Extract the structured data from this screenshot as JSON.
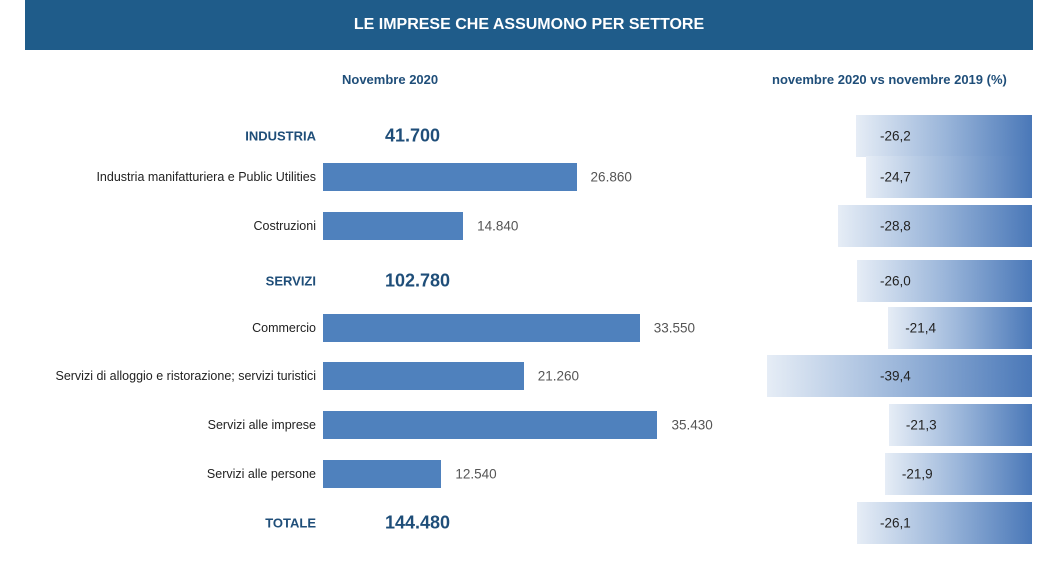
{
  "chart_data": {
    "type": "bar",
    "title": "LE IMPRESE CHE ASSUMONO PER SETTORE",
    "left_header": "Novembre 2020",
    "right_header": "novembre 2020 vs novembre 2019 (%)",
    "rows": [
      {
        "label": "INDUSTRIA",
        "kind": "category",
        "value": 41700,
        "value_label": "41.700",
        "change": -26.2,
        "change_label": "-26,2"
      },
      {
        "label": "Industria manifatturiera e Public Utilities",
        "kind": "sub",
        "value": 26860,
        "value_label": "26.860",
        "change": -24.7,
        "change_label": "-24,7"
      },
      {
        "label": "Costruzioni",
        "kind": "sub",
        "value": 14840,
        "value_label": "14.840",
        "change": -28.8,
        "change_label": "-28,8"
      },
      {
        "label": "SERVIZI",
        "kind": "category",
        "value": 102780,
        "value_label": "102.780",
        "change": -26.0,
        "change_label": "-26,0"
      },
      {
        "label": "Commercio",
        "kind": "sub",
        "value": 33550,
        "value_label": "33.550",
        "change": -21.4,
        "change_label": "-21,4"
      },
      {
        "label": "Servizi di alloggio e ristorazione; servizi turistici",
        "kind": "sub",
        "value": 21260,
        "value_label": "21.260",
        "change": -39.4,
        "change_label": "-39,4"
      },
      {
        "label": "Servizi alle imprese",
        "kind": "sub",
        "value": 35430,
        "value_label": "35.430",
        "change": -21.3,
        "change_label": "-21,3"
      },
      {
        "label": "Servizi alle persone",
        "kind": "sub",
        "value": 12540,
        "value_label": "12.540",
        "change": -21.9,
        "change_label": "-21,9"
      },
      {
        "label": "TOTALE",
        "kind": "category",
        "value": 144480,
        "value_label": "144.480",
        "change": -26.1,
        "change_label": "-26,1"
      }
    ],
    "colors": {
      "header": "#1f5c8a",
      "bar": "#4f81bd",
      "category_text": "#1f4e79"
    }
  }
}
